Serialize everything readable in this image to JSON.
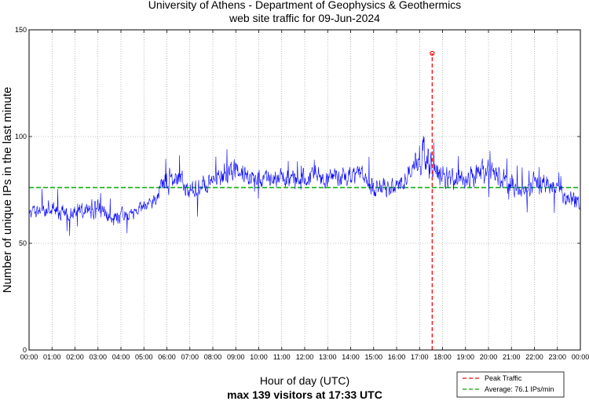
{
  "chart_data": {
    "type": "line",
    "title_line1": "University of Athens - Department of Geophysics & Geothermics",
    "title_line2": "web site traffic for 09-Jun-2024",
    "xlabel": "Hour of day (UTC)",
    "subtitle": "max 139 visitors at 17:33 UTC",
    "ylabel": "Number of unique IPs in the last minute",
    "ylim": [
      0,
      150
    ],
    "xlim_hours": [
      0,
      24
    ],
    "yticks": [
      "0",
      "50",
      "100",
      "150"
    ],
    "xticks": [
      "00:00",
      "01:00",
      "02:00",
      "03:00",
      "04:00",
      "05:00",
      "06:00",
      "07:00",
      "08:00",
      "09:00",
      "10:00",
      "11:00",
      "12:00",
      "13:00",
      "14:00",
      "15:00",
      "16:00",
      "17:00",
      "18:00",
      "19:00",
      "20:00",
      "21:00",
      "22:00",
      "23:00",
      "00:00"
    ],
    "grid": true,
    "peak": {
      "hour": 17.55,
      "value": 139
    },
    "average": 76.1,
    "legend": {
      "placement": "bottom-right",
      "peak_label": "Peak Traffic",
      "avg_label": "Average: 76.1 IPs/min"
    },
    "series": [
      {
        "name": "visitors",
        "color": "#0000ff",
        "x_hours": [
          0,
          0.5,
          1,
          1.5,
          2,
          2.5,
          3,
          3.5,
          4,
          4.5,
          5,
          5.5,
          5.75,
          6,
          6.5,
          7,
          7.5,
          8,
          8.5,
          9,
          9.5,
          10,
          10.5,
          11,
          11.5,
          12,
          12.5,
          13,
          13.5,
          14,
          14.5,
          15,
          15.5,
          16,
          16.5,
          16.9,
          17.2,
          17.5,
          17.7,
          18,
          18.5,
          19,
          19.5,
          20,
          20.5,
          21,
          21.5,
          22,
          22.5,
          23,
          23.5,
          24
        ],
        "values": [
          63,
          66,
          66,
          64,
          65,
          66,
          66,
          62,
          62,
          64,
          68,
          70,
          77,
          80,
          81,
          74,
          76,
          80,
          82,
          85,
          83,
          80,
          79,
          81,
          80,
          81,
          82,
          81,
          82,
          81,
          82,
          75,
          75,
          77,
          80,
          88,
          94,
          85,
          83,
          82,
          80,
          80,
          82,
          84,
          80,
          78,
          74,
          78,
          78,
          75,
          71,
          68
        ],
        "amplitude": [
          5,
          5,
          5,
          5,
          5,
          5,
          6,
          5,
          5,
          4,
          4,
          4,
          6,
          8,
          7,
          6,
          6,
          6,
          7,
          7,
          6,
          6,
          6,
          6,
          6,
          6,
          6,
          6,
          6,
          6,
          6,
          6,
          6,
          6,
          7,
          10,
          12,
          8,
          7,
          7,
          7,
          7,
          7,
          8,
          7,
          7,
          6,
          6,
          6,
          6,
          6,
          6
        ]
      }
    ]
  }
}
